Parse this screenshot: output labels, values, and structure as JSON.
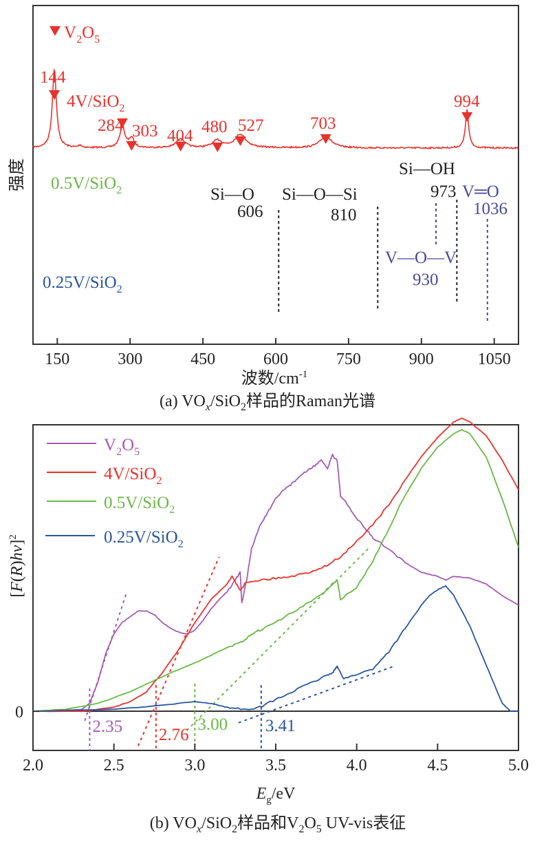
{
  "chart_data": [
    {
      "id": "raman",
      "type": "line",
      "title": "(a) VOx/SiO2样品的Raman光谱",
      "caption_parts": [
        "(a) VO",
        "x",
        "/SiO",
        "2",
        "样品的Raman光谱"
      ],
      "xlabel": "波数/cm",
      "xlabel_sup": "-1",
      "ylabel": "强度",
      "xlim": [
        100,
        1100
      ],
      "x_ticks": [
        150,
        300,
        450,
        600,
        750,
        900,
        1050
      ],
      "legend_marker_label": "V2O5",
      "legend_marker_parts": [
        "V",
        "2",
        "O",
        "5"
      ],
      "series": [
        {
          "name": "4V/SiO2",
          "label_parts": [
            "4V/SiO",
            "2"
          ],
          "color": "#e8322d",
          "offset": 2.0,
          "peaks": [
            {
              "x": 144,
              "h": 1.0,
              "w": 5
            },
            {
              "x": 284,
              "h": 0.28,
              "w": 6
            },
            {
              "x": 303,
              "h": 0.12,
              "w": 6
            },
            {
              "x": 404,
              "h": 0.12,
              "w": 10
            },
            {
              "x": 480,
              "h": 0.09,
              "w": 12
            },
            {
              "x": 527,
              "h": 0.17,
              "w": 14
            },
            {
              "x": 703,
              "h": 0.15,
              "w": 14
            },
            {
              "x": 994,
              "h": 0.48,
              "w": 4
            },
            {
              "x": 197,
              "h": 0.03,
              "w": 4
            }
          ]
        },
        {
          "name": "0.5V/SiO2",
          "label_parts": [
            "0.5V/SiO",
            "2"
          ],
          "color": "#6ab845",
          "offset": 1.0
        },
        {
          "name": "0.25V/SiO2",
          "label_parts": [
            "0.25V/SiO",
            "2"
          ],
          "color": "#2a55a0",
          "offset": 0.0
        }
      ],
      "peak_labels": [
        "144",
        "284",
        "303",
        "404",
        "480",
        "527",
        "703",
        "994"
      ],
      "annotations": [
        {
          "text": "Si—O",
          "value": "606",
          "color": "#222222"
        },
        {
          "text": "Si—O—Si",
          "value": "810",
          "color": "#222222"
        },
        {
          "text": "Si—OH",
          "value": "973",
          "color": "#222222"
        },
        {
          "text": "V═O",
          "value": "1036",
          "color": "#4a4a9a"
        },
        {
          "text": "V—O—V",
          "value": "930",
          "color": "#4a4a9a"
        }
      ],
      "vlines": [
        {
          "x": 606,
          "color": "#222222"
        },
        {
          "x": 810,
          "color": "#222222"
        },
        {
          "x": 930,
          "color": "#4a4a9a"
        },
        {
          "x": 973,
          "color": "#222222"
        },
        {
          "x": 1036,
          "color": "#4a4a9a"
        }
      ]
    },
    {
      "id": "uvvis",
      "type": "line",
      "title": "(b) VOx/SiO2样品和V2O5 UV-vis表征",
      "caption_parts": [
        "(b) VO",
        "x",
        "/SiO",
        "2",
        "样品和V",
        "2",
        "O",
        "5",
        " UV-vis表征"
      ],
      "xlabel": "E",
      "xlabel_sub": "g",
      "xlabel_rest": "/eV",
      "ylabel": "[F(R)hν]²",
      "ylabel_parts": [
        "[",
        "F",
        "(",
        "R",
        ")",
        "hν",
        "]",
        "2"
      ],
      "xlim": [
        2.0,
        5.0
      ],
      "ylim": [
        -0.27,
        1.6
      ],
      "x_ticks": [
        "2.0",
        "2.5",
        "3.0",
        "3.5",
        "4.0",
        "4.5",
        "5.0"
      ],
      "y_ticks": [
        "0"
      ],
      "legend_position": "top-left",
      "series": [
        {
          "name": "V2O5",
          "label_parts": [
            "V",
            "2",
            "O",
            "5"
          ],
          "color": "#a15db0",
          "band_gap": "2.35",
          "points": [
            [
              2.0,
              0.0
            ],
            [
              2.2,
              0.0
            ],
            [
              2.3,
              0.01
            ],
            [
              2.35,
              0.04
            ],
            [
              2.4,
              0.15
            ],
            [
              2.45,
              0.3
            ],
            [
              2.5,
              0.4
            ],
            [
              2.55,
              0.46
            ],
            [
              2.6,
              0.49
            ],
            [
              2.65,
              0.52
            ],
            [
              2.7,
              0.52
            ],
            [
              2.75,
              0.5
            ],
            [
              2.8,
              0.46
            ],
            [
              2.85,
              0.43
            ],
            [
              2.9,
              0.41
            ],
            [
              2.95,
              0.4
            ],
            [
              3.0,
              0.42
            ],
            [
              3.05,
              0.47
            ],
            [
              3.1,
              0.53
            ],
            [
              3.15,
              0.58
            ],
            [
              3.2,
              0.62
            ],
            [
              3.25,
              0.68
            ],
            [
              3.28,
              0.72
            ],
            [
              3.29,
              0.56
            ],
            [
              3.32,
              0.68
            ],
            [
              3.35,
              0.84
            ],
            [
              3.4,
              0.96
            ],
            [
              3.45,
              1.03
            ],
            [
              3.5,
              1.1
            ],
            [
              3.55,
              1.15
            ],
            [
              3.6,
              1.18
            ],
            [
              3.65,
              1.22
            ],
            [
              3.7,
              1.25
            ],
            [
              3.75,
              1.28
            ],
            [
              3.78,
              1.3
            ],
            [
              3.82,
              1.26
            ],
            [
              3.85,
              1.33
            ],
            [
              3.88,
              1.3
            ],
            [
              3.9,
              1.12
            ],
            [
              3.95,
              1.06
            ],
            [
              4.0,
              1.0
            ],
            [
              4.05,
              0.95
            ],
            [
              4.1,
              0.9
            ],
            [
              4.2,
              0.84
            ],
            [
              4.3,
              0.77
            ],
            [
              4.4,
              0.72
            ],
            [
              4.5,
              0.7
            ],
            [
              4.55,
              0.68
            ],
            [
              4.6,
              0.7
            ],
            [
              4.7,
              0.69
            ],
            [
              4.8,
              0.66
            ],
            [
              4.9,
              0.6
            ],
            [
              5.0,
              0.55
            ]
          ]
        },
        {
          "name": "4V/SiO2",
          "label_parts": [
            "4V/SiO",
            "2"
          ],
          "color": "#e8322d",
          "band_gap": "2.76",
          "points": [
            [
              2.0,
              0.0
            ],
            [
              2.3,
              0.0
            ],
            [
              2.5,
              0.02
            ],
            [
              2.6,
              0.05
            ],
            [
              2.7,
              0.1
            ],
            [
              2.8,
              0.2
            ],
            [
              2.9,
              0.32
            ],
            [
              3.0,
              0.46
            ],
            [
              3.1,
              0.58
            ],
            [
              3.2,
              0.66
            ],
            [
              3.23,
              0.7
            ],
            [
              3.28,
              0.63
            ],
            [
              3.32,
              0.67
            ],
            [
              3.4,
              0.68
            ],
            [
              3.5,
              0.69
            ],
            [
              3.6,
              0.7
            ],
            [
              3.7,
              0.72
            ],
            [
              3.8,
              0.75
            ],
            [
              3.9,
              0.8
            ],
            [
              4.0,
              0.88
            ],
            [
              4.1,
              0.97
            ],
            [
              4.2,
              1.07
            ],
            [
              4.3,
              1.2
            ],
            [
              4.4,
              1.32
            ],
            [
              4.5,
              1.42
            ],
            [
              4.6,
              1.5
            ],
            [
              4.65,
              1.52
            ],
            [
              4.7,
              1.5
            ],
            [
              4.8,
              1.43
            ],
            [
              4.9,
              1.3
            ],
            [
              5.0,
              1.15
            ]
          ]
        },
        {
          "name": "0.5V/SiO2",
          "label_parts": [
            "0.5V/SiO",
            "2"
          ],
          "color": "#6ab845",
          "band_gap": "3.00",
          "points": [
            [
              2.0,
              0.0
            ],
            [
              2.2,
              0.01
            ],
            [
              2.4,
              0.04
            ],
            [
              2.6,
              0.1
            ],
            [
              2.8,
              0.18
            ],
            [
              3.0,
              0.25
            ],
            [
              3.1,
              0.29
            ],
            [
              3.2,
              0.33
            ],
            [
              3.3,
              0.36
            ],
            [
              3.35,
              0.4
            ],
            [
              3.4,
              0.42
            ],
            [
              3.5,
              0.46
            ],
            [
              3.6,
              0.51
            ],
            [
              3.7,
              0.56
            ],
            [
              3.8,
              0.62
            ],
            [
              3.85,
              0.66
            ],
            [
              3.88,
              0.68
            ],
            [
              3.9,
              0.58
            ],
            [
              4.0,
              0.64
            ],
            [
              4.1,
              0.78
            ],
            [
              4.2,
              0.95
            ],
            [
              4.3,
              1.12
            ],
            [
              4.4,
              1.26
            ],
            [
              4.5,
              1.37
            ],
            [
              4.6,
              1.44
            ],
            [
              4.65,
              1.46
            ],
            [
              4.7,
              1.44
            ],
            [
              4.8,
              1.32
            ],
            [
              4.9,
              1.1
            ],
            [
              5.0,
              0.85
            ]
          ]
        },
        {
          "name": "0.25V/SiO2",
          "label_parts": [
            "0.25V/SiO",
            "2"
          ],
          "color": "#2a55a0",
          "band_gap": "3.41",
          "points": [
            [
              2.0,
              0.0
            ],
            [
              2.5,
              0.01
            ],
            [
              2.8,
              0.03
            ],
            [
              3.0,
              0.05
            ],
            [
              3.1,
              0.04
            ],
            [
              3.2,
              0.02
            ],
            [
              3.3,
              0.01
            ],
            [
              3.4,
              0.02
            ],
            [
              3.5,
              0.06
            ],
            [
              3.6,
              0.1
            ],
            [
              3.7,
              0.14
            ],
            [
              3.8,
              0.18
            ],
            [
              3.85,
              0.2
            ],
            [
              3.88,
              0.23
            ],
            [
              3.92,
              0.17
            ],
            [
              4.0,
              0.19
            ],
            [
              4.1,
              0.22
            ],
            [
              4.2,
              0.31
            ],
            [
              4.3,
              0.43
            ],
            [
              4.4,
              0.55
            ],
            [
              4.45,
              0.6
            ],
            [
              4.5,
              0.63
            ],
            [
              4.55,
              0.65
            ],
            [
              4.6,
              0.6
            ],
            [
              4.7,
              0.44
            ],
            [
              4.8,
              0.24
            ],
            [
              4.9,
              0.04
            ],
            [
              4.95,
              0.0
            ],
            [
              5.0,
              0.0
            ]
          ]
        }
      ],
      "tangents": [
        {
          "series": "V2O5",
          "x1": 2.32,
          "y1": -0.05,
          "x2": 2.58,
          "y2": 0.62
        },
        {
          "series": "4V/SiO2",
          "x1": 2.65,
          "y1": -0.18,
          "x2": 3.15,
          "y2": 0.8
        },
        {
          "series": "0.5V/SiO2",
          "x1": 2.95,
          "y1": -0.1,
          "x2": 4.08,
          "y2": 0.85
        },
        {
          "series": "0.25V/SiO2",
          "x1": 3.27,
          "y1": -0.06,
          "x2": 4.22,
          "y2": 0.23
        }
      ]
    }
  ]
}
